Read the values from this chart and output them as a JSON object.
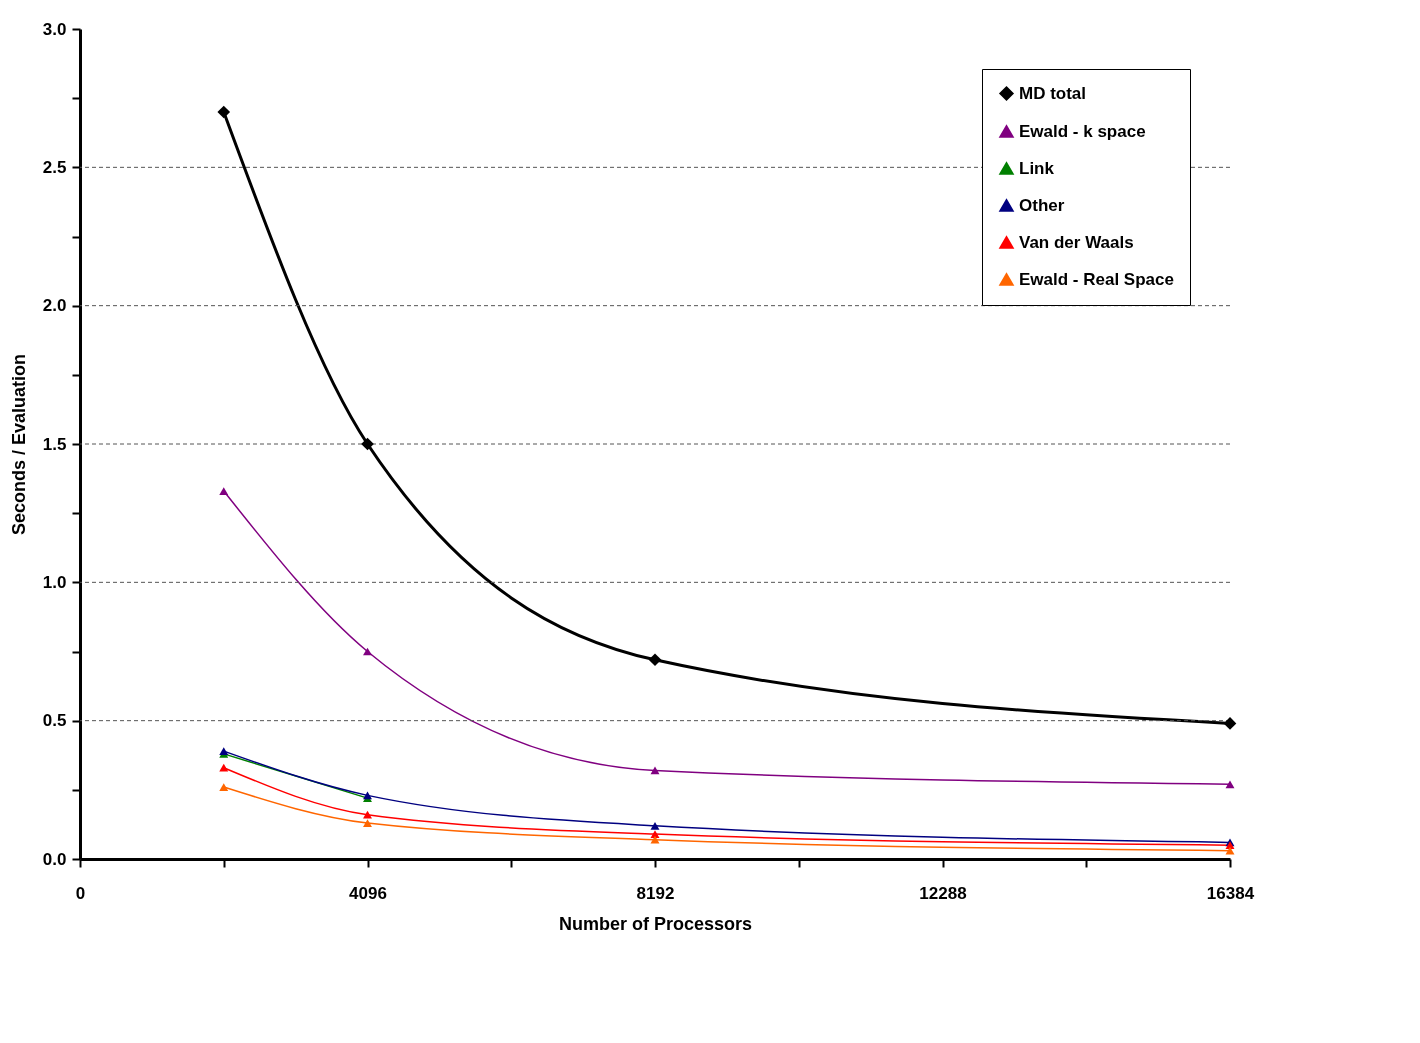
{
  "chart_data": {
    "type": "line",
    "xlabel": "Number of Processors",
    "ylabel": "Seconds / Evaluation",
    "x": [
      2048,
      4096,
      8192,
      16384
    ],
    "xlim": [
      0,
      16384
    ],
    "xticks": [
      0,
      {
        "value": 2048,
        "label": null
      },
      4096,
      {
        "value": 6144,
        "label": null
      },
      8192,
      {
        "value": 10240,
        "label": null
      },
      12288,
      {
        "value": 14336,
        "label": null
      },
      16384
    ],
    "ylim": [
      0,
      3
    ],
    "yticks": [
      {
        "value": 0,
        "label": "0.0"
      },
      {
        "value": 0.25,
        "label": null
      },
      {
        "value": 0.5,
        "label": "0.5"
      },
      {
        "value": 0.75,
        "label": null
      },
      {
        "value": 1,
        "label": "1.0"
      },
      {
        "value": 1.25,
        "label": null
      },
      {
        "value": 1.5,
        "label": "1.5"
      },
      {
        "value": 1.75,
        "label": null
      },
      {
        "value": 2,
        "label": "2.0"
      },
      {
        "value": 2.25,
        "label": null
      },
      {
        "value": 2.5,
        "label": "2.5"
      },
      {
        "value": 2.75,
        "label": null
      },
      {
        "value": 3,
        "label": "3.0"
      }
    ],
    "grid": "y",
    "legend": "top right",
    "line_style": "solid",
    "series": [
      {
        "name": "MD total",
        "color": "#000000",
        "marker": "diamond",
        "values": [
          2.7,
          1.5,
          0.72,
          0.49
        ]
      },
      {
        "name": "Ewald - k space",
        "color": "#800080",
        "marker": "triangle",
        "values": [
          1.33,
          0.75,
          0.32,
          0.27
        ]
      },
      {
        "name": "Link",
        "color": "#008000",
        "marker": "triangle",
        "values": [
          0.38,
          0.22,
          null,
          null
        ]
      },
      {
        "name": "Other",
        "color": "#000080",
        "marker": "triangle",
        "values": [
          0.39,
          0.23,
          0.12,
          0.06
        ]
      },
      {
        "name": "Van der Waals",
        "color": "#ff0000",
        "marker": "triangle",
        "values": [
          0.33,
          0.16,
          0.09,
          0.05
        ]
      },
      {
        "name": "Ewald - Real Space",
        "color": "#ff6600",
        "marker": "triangle",
        "values": [
          0.26,
          0.13,
          0.07,
          0.03
        ]
      }
    ]
  }
}
